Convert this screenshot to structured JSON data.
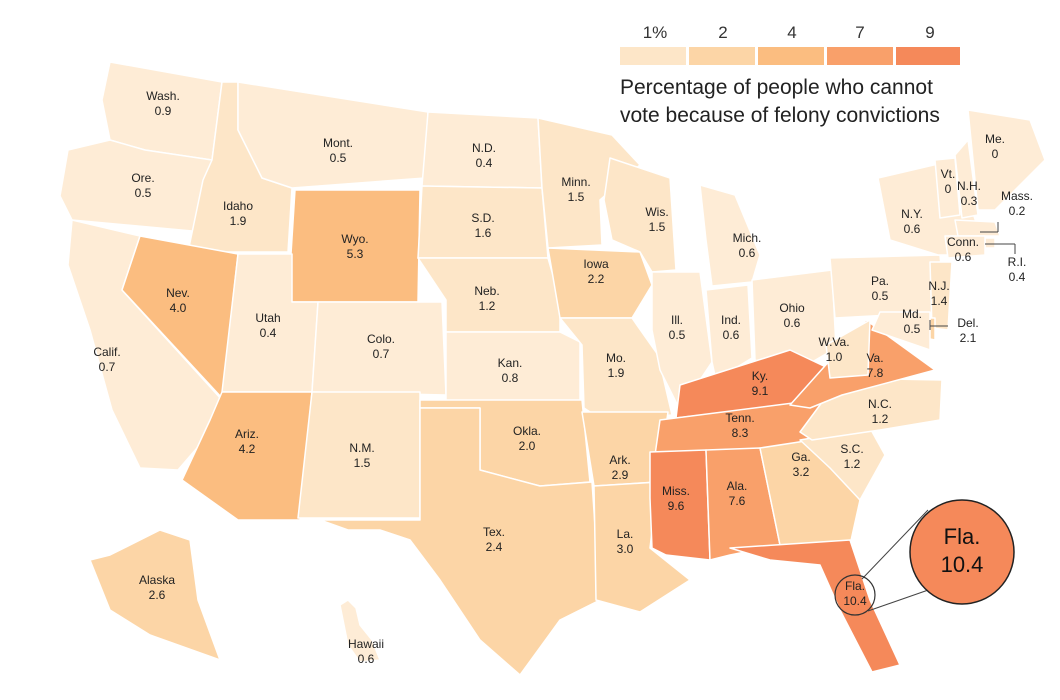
{
  "legend": {
    "ticks": [
      "1%",
      "2",
      "4",
      "7",
      "9"
    ],
    "colors": [
      "#fde6c8",
      "#fcd5a6",
      "#fbbd80",
      "#f9a06a",
      "#f5895a"
    ],
    "title_line1": "Percentage of people who cannot",
    "title_line2": "vote because of felony convictions"
  },
  "callout": {
    "name": "Fla.",
    "value": "10.4"
  },
  "states": [
    {
      "id": "wa",
      "name": "Wash.",
      "value": "0.9"
    },
    {
      "id": "or",
      "name": "Ore.",
      "value": "0.5"
    },
    {
      "id": "ca",
      "name": "Calif.",
      "value": "0.7"
    },
    {
      "id": "id",
      "name": "Idaho",
      "value": "1.9"
    },
    {
      "id": "nv",
      "name": "Nev.",
      "value": "4.0"
    },
    {
      "id": "mt",
      "name": "Mont.",
      "value": "0.5"
    },
    {
      "id": "wy",
      "name": "Wyo.",
      "value": "5.3"
    },
    {
      "id": "ut",
      "name": "Utah",
      "value": "0.4"
    },
    {
      "id": "az",
      "name": "Ariz.",
      "value": "4.2"
    },
    {
      "id": "co",
      "name": "Colo.",
      "value": "0.7"
    },
    {
      "id": "nm",
      "name": "N.M.",
      "value": "1.5"
    },
    {
      "id": "nd",
      "name": "N.D.",
      "value": "0.4"
    },
    {
      "id": "sd",
      "name": "S.D.",
      "value": "1.6"
    },
    {
      "id": "ne",
      "name": "Neb.",
      "value": "1.2"
    },
    {
      "id": "ks",
      "name": "Kan.",
      "value": "0.8"
    },
    {
      "id": "ok",
      "name": "Okla.",
      "value": "2.0"
    },
    {
      "id": "tx",
      "name": "Tex.",
      "value": "2.4"
    },
    {
      "id": "mn",
      "name": "Minn.",
      "value": "1.5"
    },
    {
      "id": "ia",
      "name": "Iowa",
      "value": "2.2"
    },
    {
      "id": "mo",
      "name": "Mo.",
      "value": "1.9"
    },
    {
      "id": "ar",
      "name": "Ark.",
      "value": "2.9"
    },
    {
      "id": "la",
      "name": "La.",
      "value": "3.0"
    },
    {
      "id": "wi",
      "name": "Wis.",
      "value": "1.5"
    },
    {
      "id": "il",
      "name": "Ill.",
      "value": "0.5"
    },
    {
      "id": "mi",
      "name": "Mich.",
      "value": "0.6"
    },
    {
      "id": "in",
      "name": "Ind.",
      "value": "0.6"
    },
    {
      "id": "oh",
      "name": "Ohio",
      "value": "0.6"
    },
    {
      "id": "ky",
      "name": "Ky.",
      "value": "9.1"
    },
    {
      "id": "tn",
      "name": "Tenn.",
      "value": "8.3"
    },
    {
      "id": "ms",
      "name": "Miss.",
      "value": "9.6"
    },
    {
      "id": "al",
      "name": "Ala.",
      "value": "7.6"
    },
    {
      "id": "ga",
      "name": "Ga.",
      "value": "3.2"
    },
    {
      "id": "fl",
      "name": "Fla.",
      "value": "10.4"
    },
    {
      "id": "sc",
      "name": "S.C.",
      "value": "1.2"
    },
    {
      "id": "nc",
      "name": "N.C.",
      "value": "1.2"
    },
    {
      "id": "va",
      "name": "Va.",
      "value": "7.8"
    },
    {
      "id": "wv",
      "name": "W.Va.",
      "value": "1.0"
    },
    {
      "id": "pa",
      "name": "Pa.",
      "value": "0.5"
    },
    {
      "id": "ny",
      "name": "N.Y.",
      "value": "0.6"
    },
    {
      "id": "vt",
      "name": "Vt.",
      "value": "0"
    },
    {
      "id": "nh",
      "name": "N.H.",
      "value": "0.3"
    },
    {
      "id": "me",
      "name": "Me.",
      "value": "0"
    },
    {
      "id": "ma",
      "name": "Mass.",
      "value": "0.2"
    },
    {
      "id": "ri",
      "name": "R.I.",
      "value": "0.4"
    },
    {
      "id": "ct",
      "name": "Conn.",
      "value": "0.6"
    },
    {
      "id": "nj",
      "name": "N.J.",
      "value": "1.4"
    },
    {
      "id": "de",
      "name": "Del.",
      "value": "2.1"
    },
    {
      "id": "md",
      "name": "Md.",
      "value": "0.5"
    },
    {
      "id": "ak",
      "name": "Alaska",
      "value": "2.6"
    },
    {
      "id": "hi",
      "name": "Hawaii",
      "value": "0.6"
    }
  ]
}
